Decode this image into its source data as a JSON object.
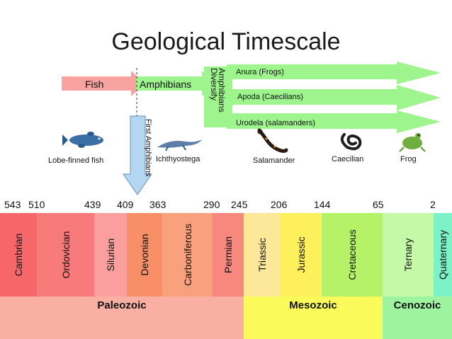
{
  "title": "Geological Timescale",
  "arrows": {
    "fish": "Fish",
    "amphibians": "Amphibians",
    "amphibians_diversify_line1": "Amphibians",
    "amphibians_diversify_line2": "Diversify",
    "anura": "Anura (Frogs)",
    "apoda": "Apoda (Caecilians)",
    "urodela": "Urodela (salamanders)",
    "first_amphibians": "First Amphibians"
  },
  "animals": [
    {
      "label": "Lobe-finned fish",
      "icon": "lobe-finned-fish-icon"
    },
    {
      "label": "Ichthyostega",
      "icon": "ichthyostega-icon"
    },
    {
      "label": "Salamander",
      "icon": "salamander-icon"
    },
    {
      "label": "Caecilian",
      "icon": "caecilian-icon"
    },
    {
      "label": "Frog",
      "icon": "frog-icon"
    }
  ],
  "ages": [
    "543",
    "510",
    "439",
    "409",
    "363",
    "290",
    "245",
    "206",
    "144",
    "65",
    "2"
  ],
  "periods": [
    {
      "name": "Cambrian",
      "color": "#f7676a"
    },
    {
      "name": "Ordovician",
      "color": "#f97a7b"
    },
    {
      "name": "Silurian",
      "color": "#fb9e9e"
    },
    {
      "name": "Devonian",
      "color": "#f98f66"
    },
    {
      "name": "Carboniferous",
      "color": "#f9a17c"
    },
    {
      "name": "Permian",
      "color": "#f8877d"
    },
    {
      "name": "Triassic",
      "color": "#fde89a"
    },
    {
      "name": "Jurassic",
      "color": "#fdf05c"
    },
    {
      "name": "Cretaceous",
      "color": "#b6f267"
    },
    {
      "name": "Ternary",
      "color": "#c4f9a8"
    },
    {
      "name": "Quaternary",
      "color": "#7df2c8"
    }
  ],
  "eras": [
    {
      "name": "Paleozoic",
      "color": "#f9b0a3"
    },
    {
      "name": "Mesozoic",
      "color": "#fafb5a"
    },
    {
      "name": "Cenozoic",
      "color": "#9ef39f"
    }
  ]
}
